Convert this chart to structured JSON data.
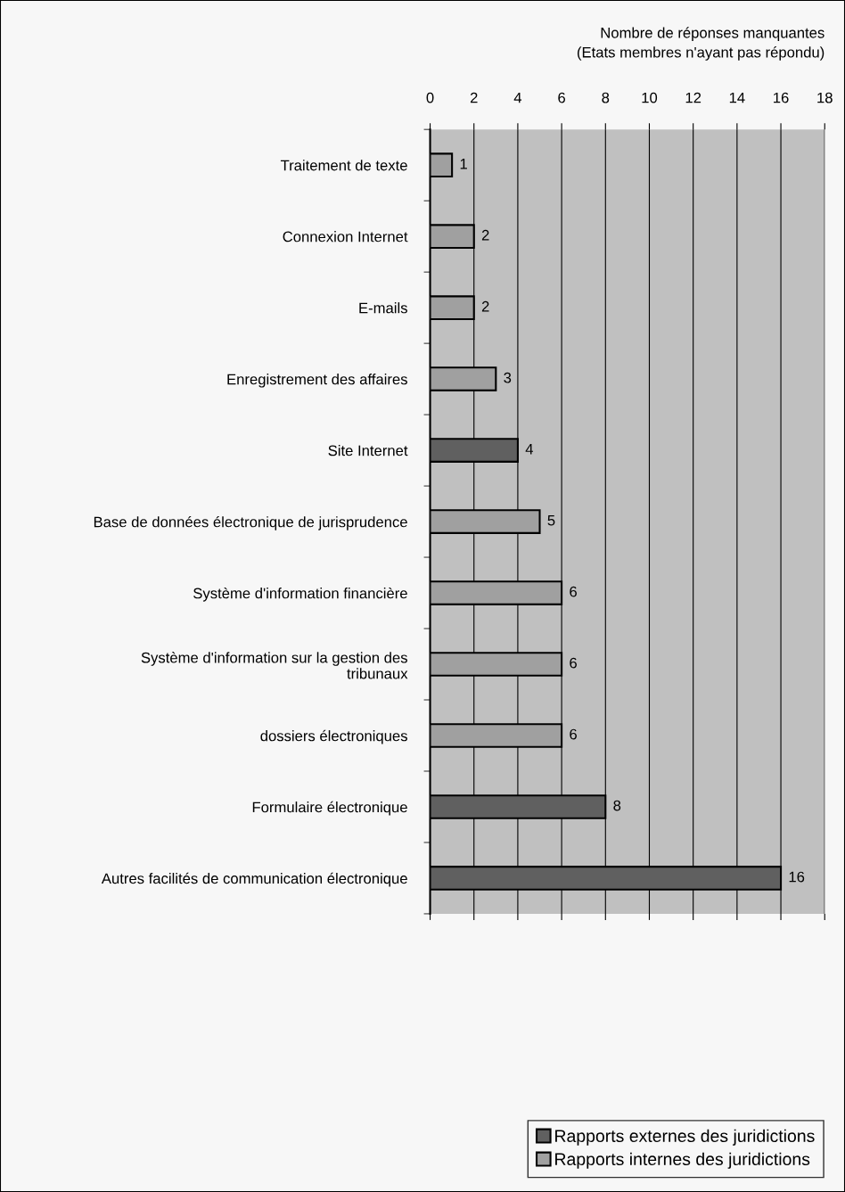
{
  "chart_data": {
    "type": "bar",
    "orientation": "horizontal",
    "xlabel": "Nombre de réponses manquantes\n(Etats membres n'ayant pas répondu)",
    "categories": [
      "Traitement de texte",
      "Connexion Internet",
      "E-mails",
      "Enregistrement des affaires",
      "Site Internet",
      "Base de données électronique de jurisprudence",
      "Système d'information financière",
      "Système d'information sur la gestion des\ntribunaux",
      "dossiers électroniques",
      "Formulaire électronique",
      "Autres facilités de communication électronique"
    ],
    "series": [
      {
        "name": "Rapports externes des juridictions",
        "color": "#606060",
        "values": [
          null,
          null,
          null,
          null,
          4,
          null,
          null,
          null,
          null,
          8,
          16
        ]
      },
      {
        "name": "Rapports internes des juridictions",
        "color": "#a0a0a0",
        "values": [
          1,
          2,
          2,
          3,
          null,
          5,
          6,
          6,
          6,
          null,
          null
        ]
      }
    ],
    "xlim": [
      0,
      18
    ],
    "xticks": [
      0,
      2,
      4,
      6,
      8,
      10,
      12,
      14,
      16,
      18
    ],
    "grid": "x",
    "data_labels": true,
    "legend": "bottom right"
  }
}
